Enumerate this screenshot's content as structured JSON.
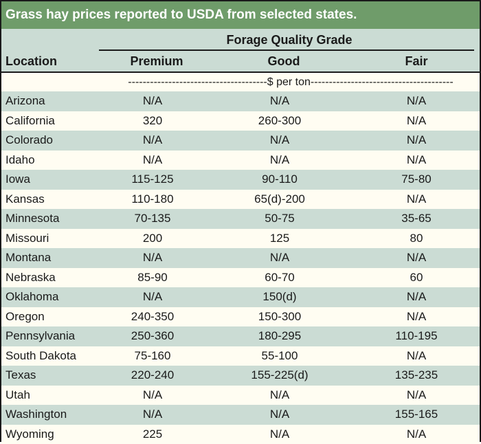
{
  "title": "Grass hay prices reported to USDA from selected states.",
  "header": {
    "group_label": "Forage Quality Grade",
    "location": "Location",
    "premium": "Premium",
    "good": "Good",
    "fair": "Fair"
  },
  "units": "--------------------------------------$ per ton---------------------------------------",
  "colors": {
    "title_bg": "#6f9c6a",
    "shade_bg": "#cbdcd4",
    "plain_bg": "#fffdf2"
  },
  "rows": [
    {
      "location": "Arizona",
      "premium": "N/A",
      "good": "N/A",
      "fair": "N/A"
    },
    {
      "location": "California",
      "premium": "320",
      "good": "260-300",
      "fair": "N/A"
    },
    {
      "location": "Colorado",
      "premium": "N/A",
      "good": "N/A",
      "fair": "N/A"
    },
    {
      "location": "Idaho",
      "premium": "N/A",
      "good": "N/A",
      "fair": "N/A"
    },
    {
      "location": "Iowa",
      "premium": "115-125",
      "good": "90-110",
      "fair": "75-80"
    },
    {
      "location": "Kansas",
      "premium": "110-180",
      "good": "65(d)-200",
      "fair": "N/A"
    },
    {
      "location": "Minnesota",
      "premium": "70-135",
      "good": "50-75",
      "fair": "35-65"
    },
    {
      "location": "Missouri",
      "premium": "200",
      "good": "125",
      "fair": "80"
    },
    {
      "location": "Montana",
      "premium": "N/A",
      "good": "N/A",
      "fair": "N/A"
    },
    {
      "location": "Nebraska",
      "premium": "85-90",
      "good": "60-70",
      "fair": "60"
    },
    {
      "location": "Oklahoma",
      "premium": "N/A",
      "good": "150(d)",
      "fair": "N/A"
    },
    {
      "location": "Oregon",
      "premium": "240-350",
      "good": "150-300",
      "fair": "N/A"
    },
    {
      "location": "Pennsylvania",
      "premium": "250-360",
      "good": "180-295",
      "fair": "110-195"
    },
    {
      "location": "South Dakota",
      "premium": "75-160",
      "good": "55-100",
      "fair": "N/A"
    },
    {
      "location": "Texas",
      "premium": "220-240",
      "good": "155-225(d)",
      "fair": "135-235"
    },
    {
      "location": "Utah",
      "premium": "N/A",
      "good": "N/A",
      "fair": "N/A"
    },
    {
      "location": "Washington",
      "premium": "N/A",
      "good": "N/A",
      "fair": "155-165"
    },
    {
      "location": "Wyoming",
      "premium": "225",
      "good": "N/A",
      "fair": "N/A"
    }
  ]
}
